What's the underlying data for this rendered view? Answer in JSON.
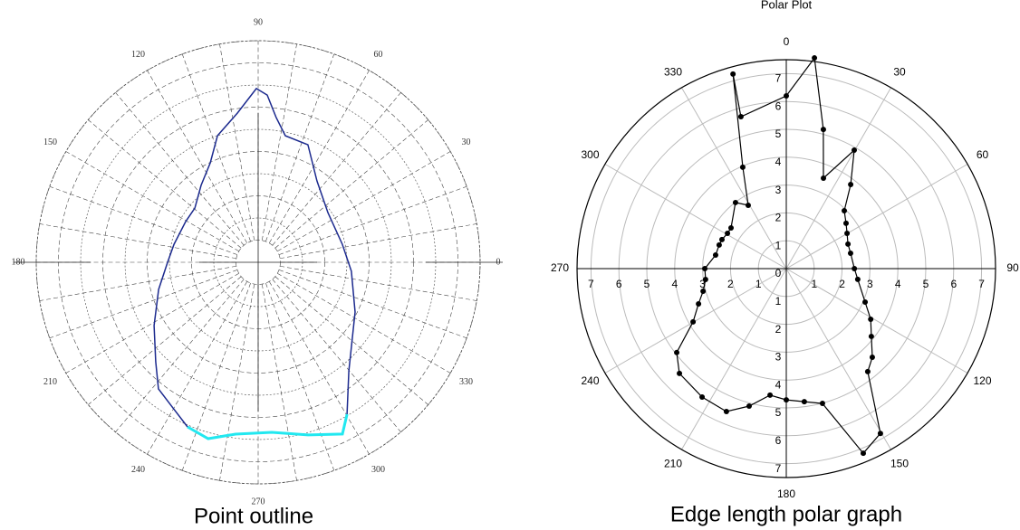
{
  "chart_data": [
    {
      "type": "polar",
      "caption": "Point outline",
      "direction": "counterclockwise",
      "zero": "right",
      "rlim": [
        0,
        10
      ],
      "angle_ticks": [
        0,
        30,
        60,
        90,
        120,
        150,
        180,
        210,
        240,
        270,
        300,
        330
      ],
      "series": [
        {
          "color": "#1c2a8e",
          "markers": false,
          "closed": false,
          "theta": [
            300.3,
            309.8,
            332.8,
            354.5,
            12.1,
            35.5,
            54.2,
            67.1,
            77.9,
            82.9,
            86.9,
            90.6,
            97.9,
            107.8,
            115.7,
            126.5,
            139.4,
            150.6,
            167.9,
            180,
            195.3,
            211.3,
            224.2,
            231.8,
            239.3,
            246.8
          ],
          "r": [
            7.94,
            6.38,
            4.91,
            4.22,
            3.88,
            3.86,
            4.53,
            5.76,
            5.84,
            6.58,
            7.56,
            7.84,
            6.8,
            6.0,
            4.98,
            4.32,
            3.76,
            3.75,
            3.88,
            4.08,
            4.65,
            5.49,
            6.44,
            7.27,
            7.59,
            8.08
          ]
        },
        {
          "color": "#22e8f0",
          "markers": false,
          "closed": false,
          "theta": [
            246.8,
            254.2,
            262.5,
            274.6,
            286.1,
            296.1,
            300.3
          ],
          "r": [
            8.08,
            8.27,
            7.82,
            7.7,
            8.11,
            8.63,
            7.94
          ]
        }
      ]
    },
    {
      "type": "polar",
      "title": "Polar Plot",
      "caption": "Edge length polar graph",
      "direction": "clockwise",
      "zero": "top",
      "rlim": [
        0,
        7.5
      ],
      "rticks": [
        0,
        1,
        2,
        3,
        4,
        5,
        6,
        7
      ],
      "angle_ticks": [
        0,
        30,
        60,
        90,
        120,
        150,
        180,
        210,
        240,
        270,
        300,
        330
      ],
      "series": [
        {
          "color": "#000000",
          "markers": true,
          "closed": true,
          "theta": [
            0,
            7.6,
            14.9,
            22.3,
            29.8,
            37.4,
            45,
            52.8,
            59.8,
            68.3,
            76.5,
            90,
            98.6,
            113,
            121,
            128.6,
            135.9,
            141.7,
            150.3,
            157.4,
            165,
            172.3,
            180,
            187.3,
            195.1,
            202.7,
            213.2,
            225.5,
            232.5,
            240.2,
            248.1,
            254.8,
            262.3,
            270,
            280.9,
            289.4,
            294.3,
            301,
            306.4,
            322.5,
            329,
            336.8,
            344.7,
            343.4
          ],
          "r": [
            6.2,
            7.63,
            5.17,
            3.51,
            4.9,
            3.8,
            2.94,
            2.69,
            2.52,
            2.38,
            2.37,
            2.44,
            2.59,
            3.07,
            3.53,
            3.9,
            4.43,
            4.71,
            6.81,
            7.18,
            5.01,
            4.82,
            4.71,
            4.58,
            5.11,
            5.56,
            5.51,
            5.37,
            4.95,
            3.85,
            3.39,
            3.09,
            2.92,
            2.92,
            2.58,
            2.55,
            2.53,
            2.46,
            2.46,
            2.99,
            2.65,
            3.96,
            7.24,
            5.69
          ]
        }
      ]
    }
  ]
}
